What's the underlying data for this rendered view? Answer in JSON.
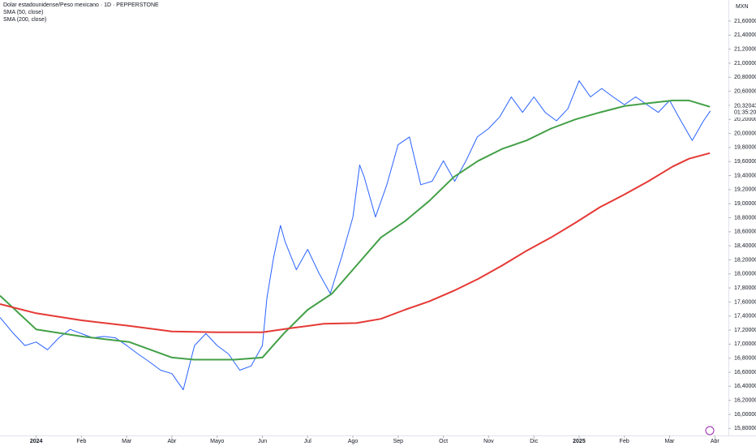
{
  "chart_data": {
    "type": "line",
    "annotations": {
      "currency": "MXN",
      "price_label": "20,32043",
      "countdown": "01:35:20"
    },
    "xlim": [
      -0.8,
      15.3
    ],
    "xticks": [
      {
        "value": 0,
        "label": "2024"
      },
      {
        "value": 1,
        "label": "Feb"
      },
      {
        "value": 2,
        "label": "Mar"
      },
      {
        "value": 3,
        "label": "Abr"
      },
      {
        "value": 4,
        "label": "Mayo"
      },
      {
        "value": 5,
        "label": "Jun"
      },
      {
        "value": 6,
        "label": "Jul"
      },
      {
        "value": 7,
        "label": "Ago"
      },
      {
        "value": 8,
        "label": "Sep"
      },
      {
        "value": 9,
        "label": "Oct"
      },
      {
        "value": 10,
        "label": "Nov"
      },
      {
        "value": 11,
        "label": "Dic"
      },
      {
        "value": 12,
        "label": "2025"
      },
      {
        "value": 13,
        "label": "Feb"
      },
      {
        "value": 14,
        "label": "Mar"
      },
      {
        "value": 15,
        "label": "Abr"
      }
    ],
    "ylim": [
      15.7,
      21.9
    ],
    "yticks": [
      {
        "value": 15.8,
        "label": "15,80000"
      },
      {
        "value": 16.0,
        "label": "16,00000"
      },
      {
        "value": 16.2,
        "label": "16,20000"
      },
      {
        "value": 16.4,
        "label": "16,40000"
      },
      {
        "value": 16.6,
        "label": "16,60000"
      },
      {
        "value": 16.8,
        "label": "16,80000"
      },
      {
        "value": 17.0,
        "label": "17,00000"
      },
      {
        "value": 17.2,
        "label": "17,20000"
      },
      {
        "value": 17.4,
        "label": "17,40000"
      },
      {
        "value": 17.6,
        "label": "17,60000"
      },
      {
        "value": 17.8,
        "label": "17,80000"
      },
      {
        "value": 18.0,
        "label": "18,00000"
      },
      {
        "value": 18.2,
        "label": "18,20000"
      },
      {
        "value": 18.4,
        "label": "18,40000"
      },
      {
        "value": 18.6,
        "label": "18,60000"
      },
      {
        "value": 18.8,
        "label": "18,80000"
      },
      {
        "value": 19.0,
        "label": "19,00000"
      },
      {
        "value": 19.2,
        "label": "19,20000"
      },
      {
        "value": 19.4,
        "label": "19,40000"
      },
      {
        "value": 19.6,
        "label": "19,60000"
      },
      {
        "value": 19.8,
        "label": "19,80000"
      },
      {
        "value": 20.0,
        "label": "20,00000"
      },
      {
        "value": 20.2,
        "label": "20,20000"
      },
      {
        "value": 20.4,
        "label": "20,40000"
      },
      {
        "value": 20.6,
        "label": "20,60000"
      },
      {
        "value": 20.8,
        "label": "20,80000"
      },
      {
        "value": 21.0,
        "label": "21,00000"
      },
      {
        "value": 21.2,
        "label": "21,20000"
      },
      {
        "value": 21.4,
        "label": "21,40000"
      },
      {
        "value": 21.6,
        "label": "21,60000"
      }
    ],
    "series": [
      {
        "name": "Dolar estadounidense/Peso mexicano · 1D · PEPPERSTONE",
        "color": "#2962ff",
        "width": 1,
        "x": [
          -0.8,
          -0.5,
          -0.25,
          0,
          0.25,
          0.5,
          0.75,
          1,
          1.25,
          1.5,
          1.75,
          2,
          2.25,
          2.5,
          2.75,
          3,
          3.25,
          3.5,
          3.75,
          4,
          4.25,
          4.5,
          4.75,
          5,
          5.1,
          5.25,
          5.4,
          5.5,
          5.75,
          6,
          6.25,
          6.5,
          6.75,
          7,
          7.15,
          7.25,
          7.5,
          7.75,
          8,
          8.25,
          8.5,
          8.75,
          9,
          9.25,
          9.5,
          9.75,
          10,
          10.25,
          10.5,
          10.75,
          11,
          11.25,
          11.5,
          11.75,
          12,
          12.25,
          12.5,
          12.75,
          13,
          13.25,
          13.5,
          13.75,
          14,
          14.25,
          14.5,
          14.75,
          14.9
        ],
        "values": [
          17.38,
          17.15,
          16.98,
          17.03,
          16.92,
          17.09,
          17.21,
          17.15,
          17.09,
          17.11,
          17.09,
          16.98,
          16.86,
          16.75,
          16.63,
          16.58,
          16.35,
          16.98,
          17.15,
          16.98,
          16.86,
          16.63,
          16.69,
          16.98,
          17.66,
          18.24,
          18.69,
          18.46,
          18.06,
          18.35,
          18.01,
          17.72,
          18.24,
          18.81,
          19.55,
          19.38,
          18.81,
          19.27,
          19.84,
          19.95,
          19.27,
          19.32,
          19.61,
          19.32,
          19.61,
          19.95,
          20.07,
          20.24,
          20.52,
          20.3,
          20.52,
          20.3,
          20.18,
          20.35,
          20.75,
          20.52,
          20.64,
          20.52,
          20.41,
          20.52,
          20.41,
          20.3,
          20.47,
          20.18,
          19.9,
          20.18,
          20.32
        ]
      },
      {
        "name": "SMA (50, close)",
        "color": "#43a047",
        "width": 2,
        "x": [
          -0.8,
          0,
          1,
          2.06,
          3,
          3.49,
          4.39,
          5,
          5.47,
          6,
          6.54,
          7.08,
          7.62,
          8.15,
          8.69,
          9.23,
          9.77,
          10.3,
          10.84,
          11.38,
          11.92,
          12.46,
          13,
          13.53,
          14.07,
          14.43,
          14.89
        ],
        "values": [
          17.69,
          17.21,
          17.11,
          17.03,
          16.81,
          16.78,
          16.78,
          16.81,
          17.15,
          17.49,
          17.72,
          18.12,
          18.52,
          18.75,
          19.04,
          19.38,
          19.61,
          19.78,
          19.9,
          20.07,
          20.2,
          20.3,
          20.39,
          20.43,
          20.47,
          20.47,
          20.38
        ]
      },
      {
        "name": "SMA (200, close)",
        "color": "#e53935",
        "width": 2,
        "x": [
          -0.8,
          0,
          1,
          2.06,
          3,
          4.03,
          5,
          5.65,
          6.36,
          7.08,
          7.62,
          8.15,
          8.69,
          9.23,
          9.77,
          10.3,
          10.84,
          11.38,
          11.92,
          12.46,
          13,
          13.53,
          14.07,
          14.43,
          14.89
        ],
        "values": [
          17.57,
          17.44,
          17.34,
          17.26,
          17.18,
          17.17,
          17.17,
          17.23,
          17.29,
          17.3,
          17.36,
          17.49,
          17.61,
          17.76,
          17.93,
          18.12,
          18.33,
          18.52,
          18.73,
          18.95,
          19.13,
          19.32,
          19.53,
          19.64,
          19.72
        ]
      }
    ]
  }
}
